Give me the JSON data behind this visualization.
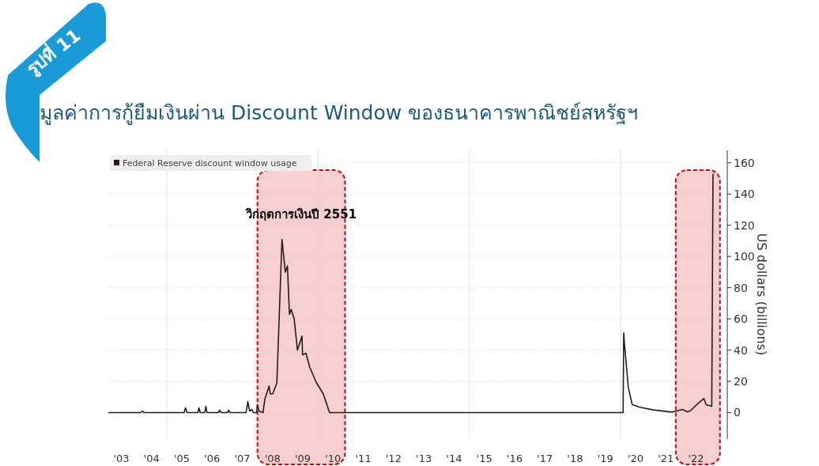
{
  "chart_data": {
    "type": "line",
    "title": "มูลค่าการกู้ยืมเงินผ่าน Discount Window ของธนาคารพาณิชย์สหรัฐฯ",
    "ylabel": "US dollars (billions)",
    "annotations": [
      "รูปที่ 11",
      "วิกฤตการเงินปี 2551"
    ],
    "x": [
      "2003-01-26",
      "2004-02-24",
      "2004-03-14",
      "2004-04-01",
      "2005-07-28",
      "2005-08-15",
      "2005-09-03",
      "2006-01-12",
      "2006-01-26",
      "2006-02-10",
      "2006-04-05",
      "2006-04-16",
      "2006-05-01",
      "2006-09-13",
      "2006-10-01",
      "2006-10-19",
      "2007-01-01",
      "2007-01-19",
      "2007-02-06",
      "2007-08-15",
      "2007-09-06",
      "2007-09-28",
      "2007-10-23",
      "2007-11-14",
      "2007-12-20",
      "2008-01-01",
      "2008-01-19",
      "2008-03-07",
      "2008-03-29",
      "2008-04-20",
      "2008-05-19",
      "2008-06-03",
      "2008-07-02",
      "2008-08-22",
      "2008-10-23",
      "2008-12-02",
      "2008-12-28",
      "2009-01-22",
      "2009-02-13",
      "2009-03-18",
      "2009-04-27",
      "2009-06-21",
      "2009-06-28",
      "2009-08-08",
      "2009-09-24",
      "2009-12-14",
      "2010-03-04",
      "2010-05-19",
      "2020-02-03",
      "2020-02-10",
      "2020-02-21",
      "2020-04-05",
      "2020-05-22",
      "2020-08-26",
      "2021-02-03",
      "2021-09-13",
      "2021-11-07",
      "2022-01-19",
      "2022-03-15",
      "2022-04-20",
      "2022-07-28",
      "2022-10-05",
      "2022-10-31",
      "2023-01-08",
      "2023-01-23"
    ],
    "series": [
      {
        "name": "Federal Reserve discount window usage",
        "color": "#2b1a1a",
        "values": [
          0,
          0,
          1,
          0,
          0,
          3,
          0,
          0,
          3,
          0,
          0,
          4,
          0,
          0,
          1.5,
          0,
          0,
          1.5,
          0,
          0,
          7,
          1,
          2,
          0,
          0,
          5,
          1,
          0,
          8.5,
          12,
          17,
          12,
          12,
          19,
          111,
          90,
          94,
          63,
          66,
          60,
          40,
          49,
          37,
          38,
          29,
          19,
          12,
          0,
          0,
          51,
          43,
          16,
          5,
          3.4,
          1.7,
          0.3,
          1,
          2,
          0.5,
          1,
          6,
          9,
          5,
          4,
          153
        ]
      }
    ],
    "xlim": [
      "2003-01-26",
      "2023-07-13"
    ],
    "ylim": [
      -17,
      168
    ],
    "xticks": [
      {
        "value": "2003-07",
        "label": "'03"
      },
      {
        "value": "2004-07",
        "label": "'04"
      },
      {
        "value": "2005",
        "label": null
      },
      {
        "value": "2005-07",
        "label": "'05"
      },
      {
        "value": "2006-07",
        "label": "'06"
      },
      {
        "value": "2007-07",
        "label": "'07"
      },
      {
        "value": "2008-07",
        "label": "'08"
      },
      {
        "value": "2009-07",
        "label": "'09"
      },
      {
        "value": "2010",
        "label": null
      },
      {
        "value": "2010-07",
        "label": "'10"
      },
      {
        "value": "2011-07",
        "label": "'11"
      },
      {
        "value": "2012-07",
        "label": "'12"
      },
      {
        "value": "2013-07",
        "label": "'13"
      },
      {
        "value": "2014-07",
        "label": "'14"
      },
      {
        "value": "2015",
        "label": null
      },
      {
        "value": "2015-07",
        "label": "'15"
      },
      {
        "value": "2016-07",
        "label": "'16"
      },
      {
        "value": "2017-07",
        "label": "'17"
      },
      {
        "value": "2018-07",
        "label": "'18"
      },
      {
        "value": "2019-07",
        "label": "'19"
      },
      {
        "value": "2020",
        "label": null
      },
      {
        "value": "2020-07",
        "label": "'20"
      },
      {
        "value": "2021-07",
        "label": "'21"
      },
      {
        "value": "2022-07",
        "label": "'22"
      }
    ],
    "yticks": [
      0,
      20,
      40,
      60,
      80,
      100,
      120,
      140,
      160
    ],
    "grid": true,
    "legend": "top left",
    "bands": [
      {
        "axis": "x",
        "from": "2008-01-01",
        "to": "2010-11-24",
        "color": "#f4c7c9"
      },
      {
        "axis": "x",
        "from": "2021-10-30",
        "to": "2023-04-16",
        "color": "#f4c7c9"
      }
    ]
  }
}
